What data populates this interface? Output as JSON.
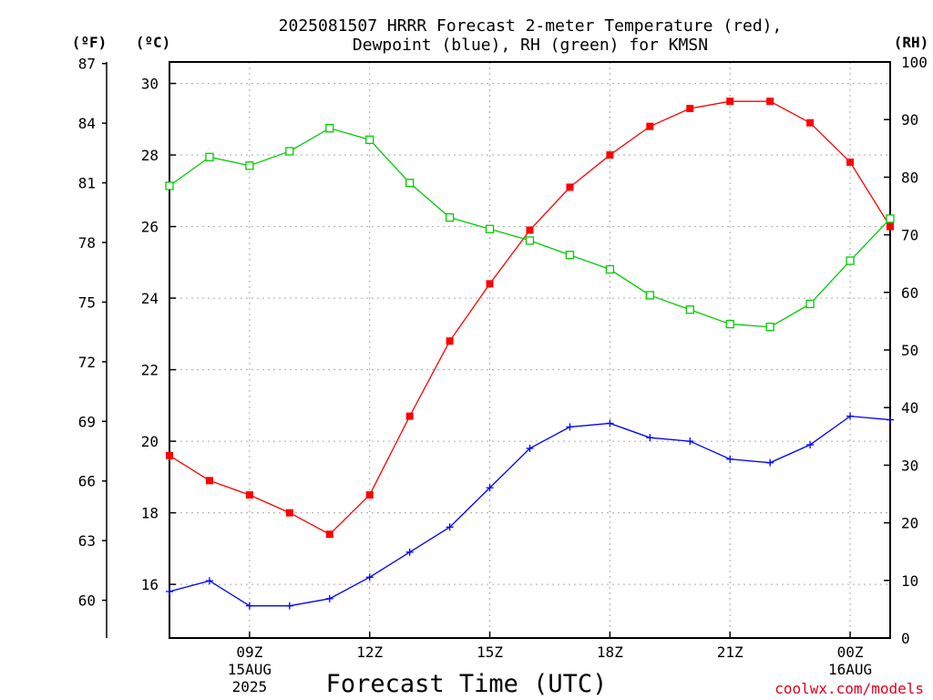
{
  "chart_data": {
    "type": "line",
    "title_line1": "2025081507 HRRR Forecast 2-meter Temperature (red),",
    "title_line2": "Dewpoint (blue), RH (green) for KMSN",
    "xlabel": "Forecast Time (UTC)",
    "credit": "coolwx.com/models",
    "unit_f": "(ºF)",
    "unit_c": "(ºC)",
    "unit_rh": "(RH)",
    "x_hours": [
      7,
      8,
      9,
      10,
      11,
      12,
      13,
      14,
      15,
      16,
      17,
      18,
      19,
      20,
      21,
      22,
      23,
      24,
      25
    ],
    "xlim": [
      7,
      25
    ],
    "x_ticks": [
      {
        "hour": 9,
        "lines": [
          "09Z",
          "15AUG",
          "2025"
        ]
      },
      {
        "hour": 12,
        "lines": [
          "12Z"
        ]
      },
      {
        "hour": 15,
        "lines": [
          "15Z"
        ]
      },
      {
        "hour": 18,
        "lines": [
          "18Z"
        ]
      },
      {
        "hour": 21,
        "lines": [
          "21Z"
        ]
      },
      {
        "hour": 24,
        "lines": [
          "00Z",
          "16AUG"
        ]
      }
    ],
    "ylim_c": [
      14.5,
      30.6
    ],
    "yticks_c": [
      "16",
      "18",
      "20",
      "22",
      "24",
      "26",
      "28",
      "30"
    ],
    "yticks_f": [
      "60",
      "63",
      "66",
      "69",
      "72",
      "75",
      "78",
      "81",
      "84",
      "87"
    ],
    "ylim_rh": [
      0,
      100
    ],
    "yticks_rh": [
      "0",
      "10",
      "20",
      "30",
      "40",
      "50",
      "60",
      "70",
      "80",
      "90",
      "100"
    ],
    "grid": true,
    "series": [
      {
        "name": "Temperature",
        "color": "#ff0000",
        "marker": "filled-square",
        "axis": "celsius",
        "values": [
          19.6,
          18.9,
          18.5,
          18.0,
          17.4,
          18.5,
          20.7,
          22.8,
          24.4,
          25.9,
          27.1,
          28.0,
          28.8,
          29.3,
          29.5,
          29.5,
          28.9,
          27.8,
          26.0
        ]
      },
      {
        "name": "Dewpoint",
        "color": "#0000ff",
        "marker": "plus",
        "axis": "celsius",
        "values": [
          15.8,
          16.1,
          15.4,
          15.4,
          15.6,
          16.2,
          16.9,
          17.6,
          18.7,
          19.8,
          20.4,
          20.5,
          20.1,
          20.0,
          19.5,
          19.4,
          19.9,
          20.7,
          20.6
        ]
      },
      {
        "name": "RH",
        "color": "#00cc00",
        "marker": "open-square",
        "axis": "rh",
        "values": [
          78.5,
          83.5,
          82.0,
          84.5,
          88.5,
          86.5,
          79.0,
          73.0,
          71.0,
          69.0,
          66.5,
          64.0,
          59.5,
          57.0,
          54.5,
          54.0,
          58.0,
          65.5,
          72.8
        ]
      }
    ]
  }
}
